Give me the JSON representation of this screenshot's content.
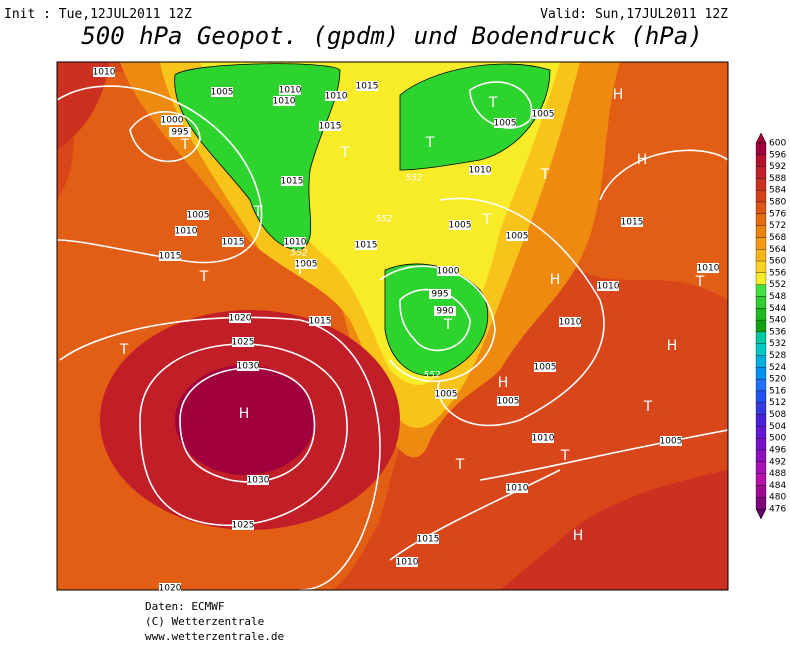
{
  "header": {
    "init": "Init : Tue,12JUL2011 12Z",
    "valid": "Valid: Sun,17JUL2011 12Z",
    "title": "500 hPa Geopot. (gpdm) und Bodendruck (hPa)"
  },
  "colorbar": {
    "labels": [
      600,
      596,
      592,
      588,
      584,
      580,
      576,
      572,
      568,
      564,
      560,
      556,
      552,
      548,
      544,
      540,
      536,
      532,
      528,
      524,
      520,
      516,
      512,
      508,
      504,
      500,
      496,
      492,
      488,
      484,
      480,
      476
    ],
    "colors": [
      "#a0003c",
      "#b4102c",
      "#c21e28",
      "#cc3020",
      "#d64018",
      "#de5414",
      "#e66a10",
      "#ee820e",
      "#f49a10",
      "#f8b418",
      "#fcd020",
      "#f8ec28",
      "#40e040",
      "#30cc30",
      "#20b820",
      "#10a010",
      "#00c8a0",
      "#00c8c8",
      "#00b0e0",
      "#0090f0",
      "#2070ff",
      "#2050f0",
      "#3838e0",
      "#4c20d8",
      "#6018d0",
      "#7810c8",
      "#9010c0",
      "#a810b8",
      "#b810a8",
      "#a00890",
      "#80087c",
      "#600068"
    ]
  },
  "isobar_labels": [
    1010,
    1005,
    1010,
    1010,
    1010,
    1015,
    1000,
    995,
    1015,
    1015,
    1005,
    1010,
    1015,
    1015,
    1010,
    1005,
    1015,
    1005,
    1005,
    1010,
    1015,
    1005,
    1005,
    1000,
    995,
    990,
    1010,
    1010,
    1010,
    1015,
    1020,
    1025,
    1030,
    1030,
    1025,
    1005,
    1005,
    1005,
    1010,
    1005,
    1010,
    1015,
    1010,
    1020,
    552,
    552,
    552,
    552
  ],
  "centers": [
    "T",
    "T",
    "T",
    "T",
    "T",
    "T",
    "T",
    "T",
    "T",
    "T",
    "T",
    "T",
    "T",
    "T",
    "T",
    "H",
    "H",
    "H",
    "H",
    "H",
    "H",
    "H"
  ],
  "footer": [
    "Daten: ECMWF",
    "(C) Wetterzentrale",
    "www.wetterzentrale.de"
  ]
}
